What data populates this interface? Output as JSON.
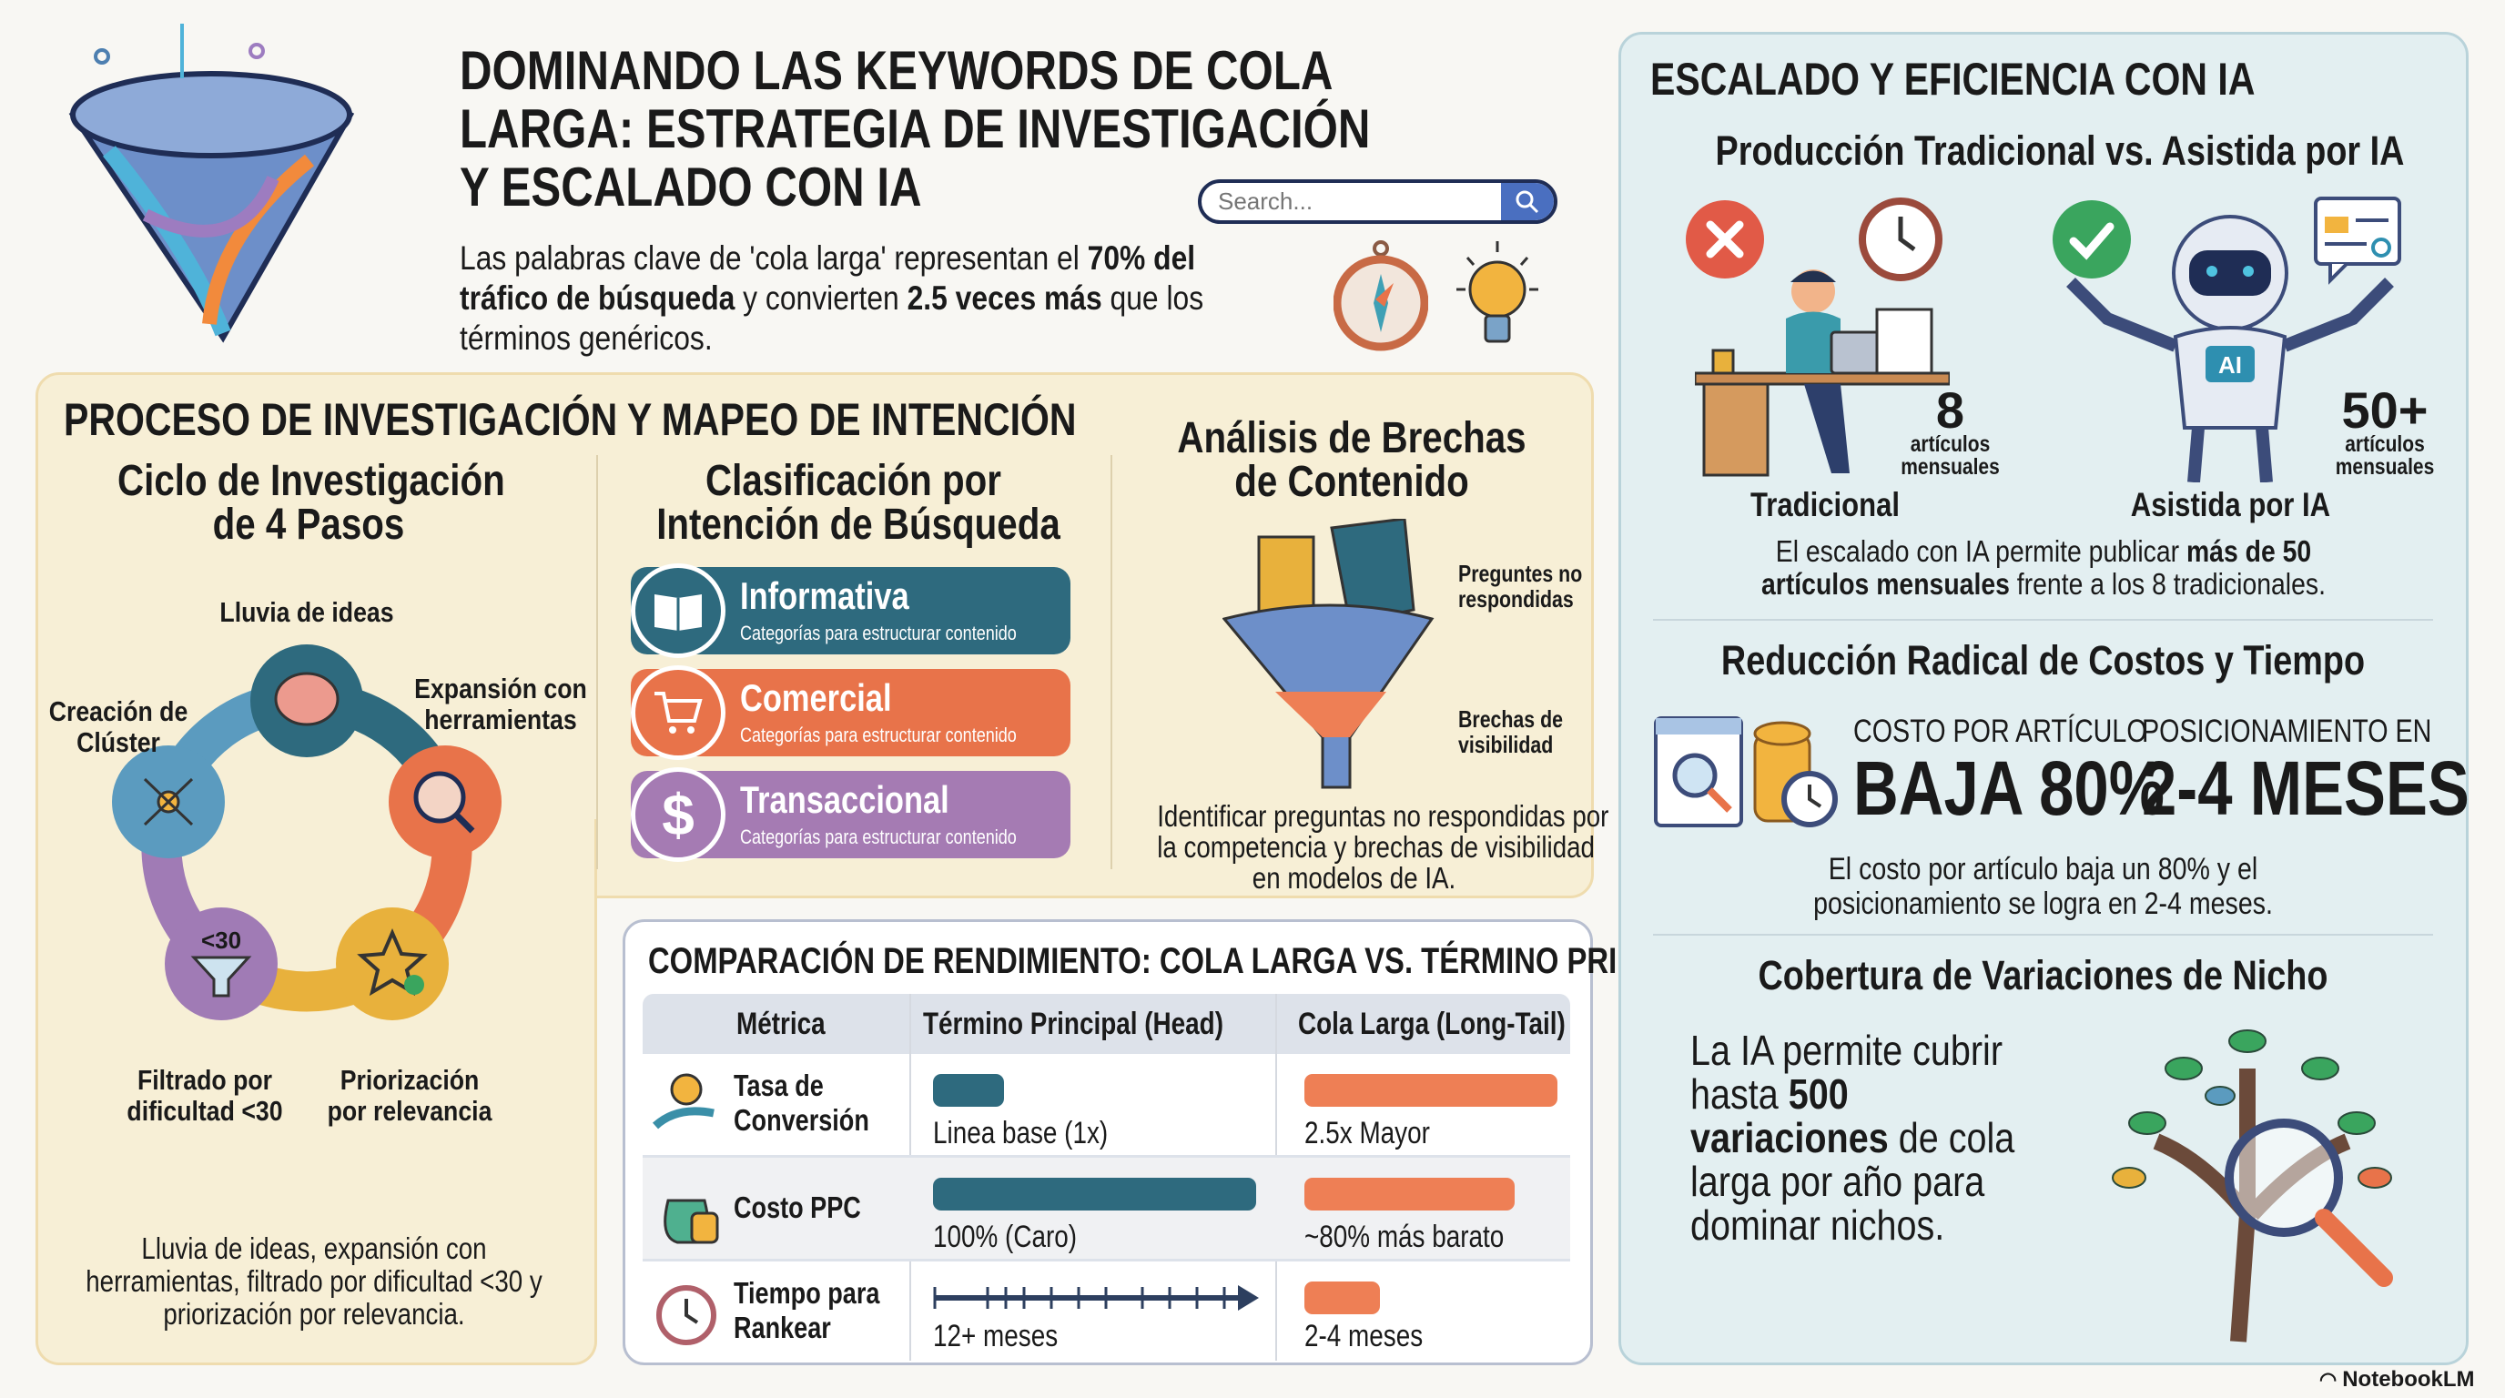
{
  "header": {
    "title_lines": [
      "DOMINANDO LAS KEYWORDS DE COLA",
      "LARGA: ESTRATEGIA DE INVESTIGACIÓN",
      "Y ESCALADO CON IA"
    ],
    "search": {
      "placeholder": "Search...",
      "icon": "search-icon"
    },
    "intro": {
      "p1": "Las palabras clave de 'cola larga' representan el ",
      "b1": "70% del tráfico de búsqueda",
      "p2": " y convierten ",
      "b2": "2.5 veces más",
      "p3": " que los términos genéricos."
    },
    "icons": [
      "funnel-icon",
      "compass-icon",
      "lightbulb-icon"
    ]
  },
  "process": {
    "title": "PROCESO DE INVESTIGACIÓN Y MAPEO DE INTENCIÓN",
    "cycle": {
      "title_lines": [
        "Ciclo de Investigación",
        "de 4 Pasos"
      ],
      "steps": [
        {
          "label_lines": [
            "Lluvia de ideas"
          ],
          "icon": "brain-icon",
          "color": "#2e6a7e"
        },
        {
          "label_lines": [
            "Expansión con",
            "herramientas"
          ],
          "icon": "gear-search-icon",
          "color": "#e8734a"
        },
        {
          "label_lines": [
            "Priorización",
            "por relevancia"
          ],
          "icon": "star-check-icon",
          "color": "#e8b13c"
        },
        {
          "label_lines": [
            "Filtrado por",
            "dificultad <30"
          ],
          "icon": "filter-icon",
          "color": "#a07bb5",
          "badge": "<30"
        },
        {
          "label_lines": [
            "Creación de",
            "Clúster"
          ],
          "icon": "network-icon",
          "color": "#5b9bbf"
        }
      ],
      "caption_lines": [
        "Lluvia de ideas, expansión con",
        "herramientas, filtrado por dificultad <30 y",
        "priorización por relevancia."
      ]
    },
    "intent": {
      "title_lines": [
        "Clasificación por",
        "Intención de Búsqueda"
      ],
      "items": [
        {
          "label": "Informativa",
          "sub": "Categorías para estructurar contenido",
          "icon": "book-icon",
          "color": "#2e6a7e"
        },
        {
          "label": "Comercial",
          "sub": "Categorías para estructurar contenido",
          "icon": "cart-icon",
          "color": "#e8734a"
        },
        {
          "label": "Transaccional",
          "sub": "Categorías para estructurar contenido",
          "icon": "dollar-icon",
          "color": "#a57bb3"
        }
      ]
    },
    "gaps": {
      "title_lines": [
        "Análisis de Brechas",
        "de Contenido"
      ],
      "label1_lines": [
        "Preguntes no",
        "respondidas"
      ],
      "label2_lines": [
        "Brechas de",
        "visibilidad"
      ],
      "caption_lines": [
        "Identificar preguntas no respondidas por",
        "la competencia y brechas de visibilidad",
        "en modelos de IA."
      ]
    }
  },
  "comparison": {
    "title": "COMPARACIÓN DE RENDIMIENTO: COLA LARGA VS. TÉRMINO PRINCIPAL",
    "headers": [
      "Métrica",
      "Término Principal (Head)",
      "Cola Larga (Long-Tail)"
    ],
    "rows": [
      {
        "metric_lines": [
          "Tasa de",
          "Conversión"
        ],
        "icon": "money-hand-icon",
        "head": "Linea base (1x)",
        "tail": "2.5x Mayor",
        "head_fill": 22,
        "tail_fill": 100
      },
      {
        "metric_lines": [
          "Costo PPC"
        ],
        "icon": "money-bag-icon",
        "head": "100% (Caro)",
        "tail": "~80% más barato",
        "head_fill": 100,
        "tail_fill": 83
      },
      {
        "metric_lines": [
          "Tiempo para",
          "Rankear"
        ],
        "icon": "stopwatch-icon",
        "head": "12+ meses",
        "tail": "2-4 meses",
        "head_fill": 100,
        "tail_fill": 30
      }
    ],
    "colors": {
      "head": "#2e6a7e",
      "tail": "#ee7f55"
    }
  },
  "ai": {
    "title": "ESCALADO Y EFICIENCIA CON IA",
    "production": {
      "title": "Producción Tradicional vs. Asistida por IA",
      "traditional": {
        "label": "Tradicional",
        "count": "8",
        "unit_lines": [
          "artículos",
          "mensuales"
        ]
      },
      "assisted": {
        "label": "Asistida por IA",
        "count": "50+",
        "unit_lines": [
          "artículos",
          "mensuales"
        ],
        "chip": "AI"
      },
      "caption": {
        "p1": "El escalado con IA permite publicar ",
        "b1": "más de 50 artículos mensuales",
        "p2": " frente a los 8 tradicionales."
      }
    },
    "costs": {
      "title": "Reducción Radical de Costos y Tiempo",
      "stat1": {
        "label": "COSTO POR ARTÍCULO",
        "value": "BAJA 80%"
      },
      "stat2": {
        "label": "POSICIONAMIENTO EN",
        "value": "2-4 MESES"
      },
      "caption_lines": [
        "El costo por artículo baja un 80% y el",
        "posicionamiento se logra en 2-4 meses."
      ]
    },
    "niche": {
      "title": "Cobertura de Variaciones de Nicho",
      "p1": "La IA permite cubrir hasta ",
      "b1": "500 variaciones",
      "p2": " de cola larga por año para dominar nichos."
    }
  },
  "watermark": "NotebookLM"
}
